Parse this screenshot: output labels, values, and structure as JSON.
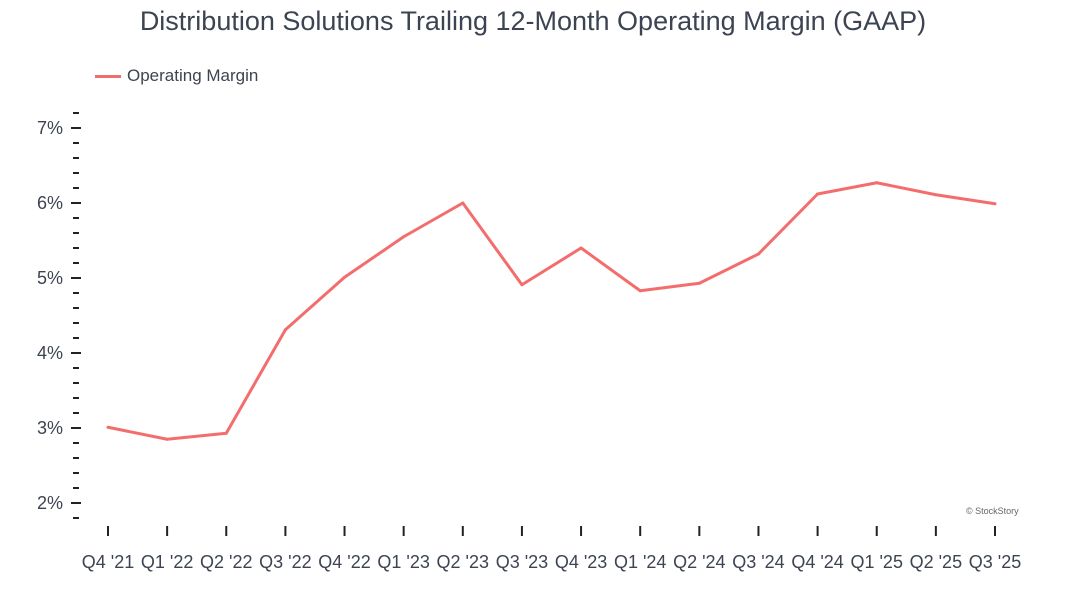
{
  "chart_data": {
    "type": "line",
    "title": "Distribution Solutions Trailing 12-Month Operating Margin (GAAP)",
    "xlabel": "",
    "ylabel": "",
    "categories": [
      "Q4 '21",
      "Q1 '22",
      "Q2 '22",
      "Q3 '22",
      "Q4 '22",
      "Q1 '23",
      "Q2 '23",
      "Q3 '23",
      "Q4 '23",
      "Q1 '24",
      "Q2 '24",
      "Q3 '24",
      "Q4 '24",
      "Q1 '25",
      "Q2 '25",
      "Q3 '25"
    ],
    "series": [
      {
        "name": "Operating Margin",
        "color": "#f46d6d",
        "values": [
          3.01,
          2.85,
          2.93,
          4.31,
          5.01,
          5.55,
          6.0,
          4.91,
          5.4,
          4.83,
          4.93,
          5.32,
          6.12,
          6.27,
          6.11,
          5.99
        ]
      }
    ],
    "yticks": [
      2,
      3,
      4,
      5,
      6,
      7
    ],
    "ytick_labels": [
      "2%",
      "3%",
      "4%",
      "5%",
      "6%",
      "7%"
    ],
    "ylim": [
      1.8,
      7.2
    ],
    "grid": false,
    "legend": "top-left"
  },
  "credit": "© StockStory"
}
